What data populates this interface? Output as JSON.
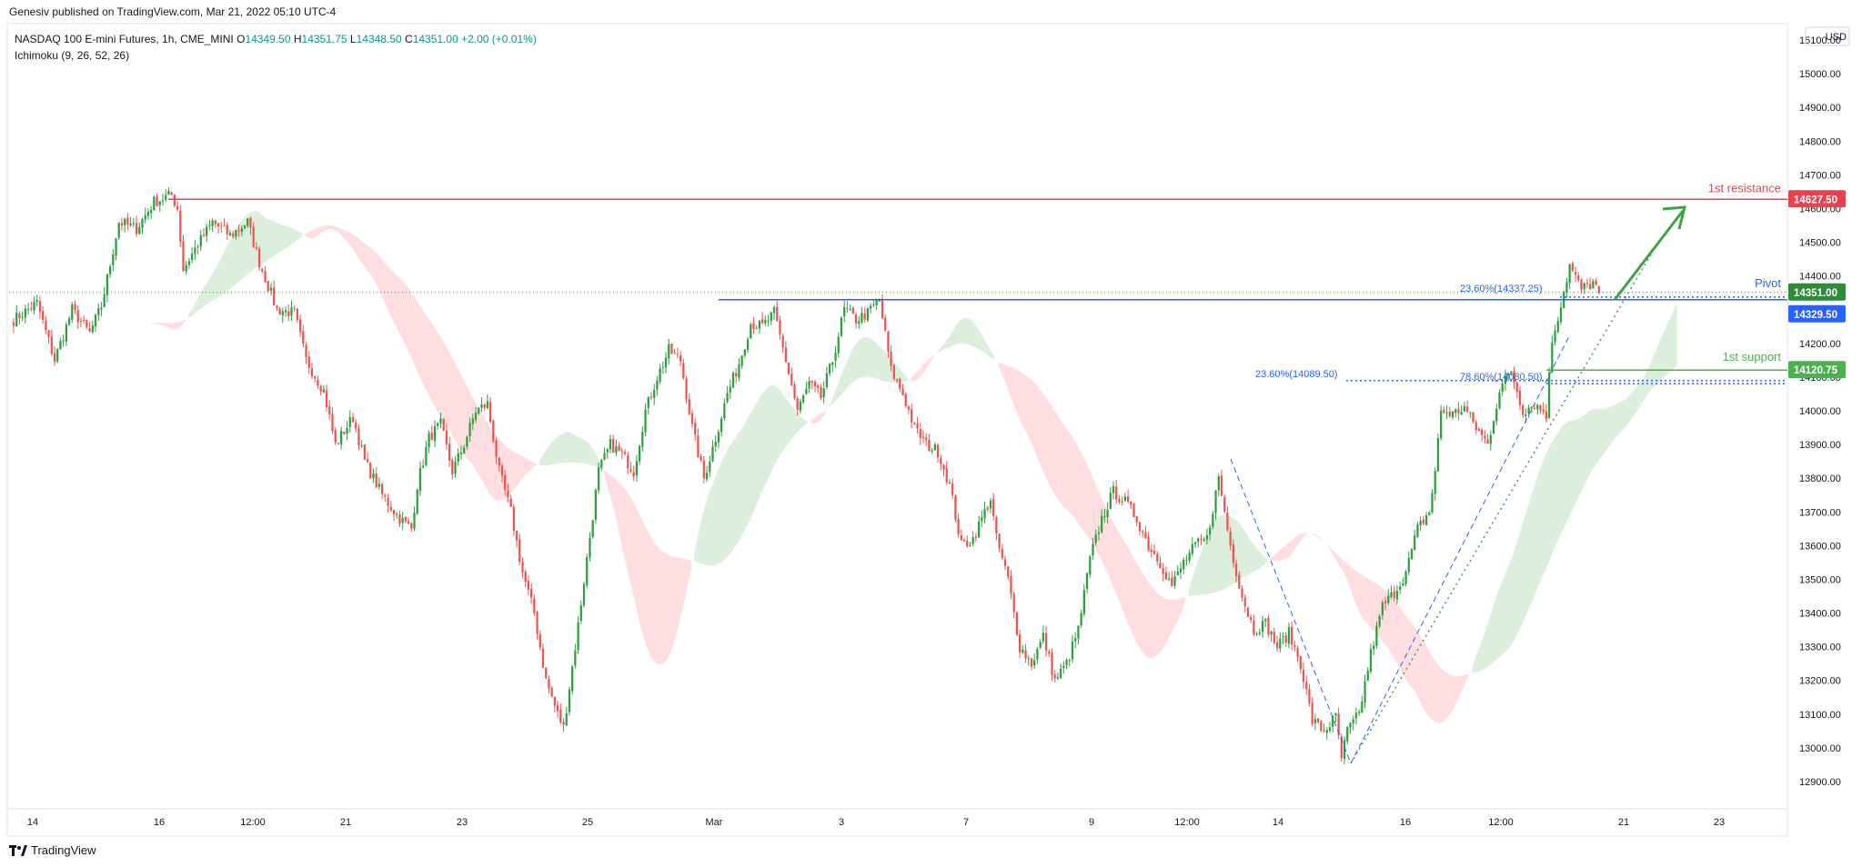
{
  "header": {
    "attribution": "Genesiv published on TradingView.com, Mar 21, 2022 05:10 UTC-4"
  },
  "legend": {
    "symbol": "NASDAQ 100 E-mini Futures, 1h, CME_MINI",
    "o_label": "O",
    "o": "14349.50",
    "h_label": "H",
    "h": "14351.75",
    "l_label": "L",
    "l": "14348.50",
    "c_label": "C",
    "c": "14351.00",
    "change": "+2.00 (+0.01%)",
    "indicator": "Ichimoku (9, 26, 52, 26)"
  },
  "price_axis": {
    "currency": "USD",
    "ticks": [
      "15100.00",
      "15000.00",
      "14900.00",
      "14800.00",
      "14700.00",
      "14600.00",
      "14500.00",
      "14400.00",
      "14300.00",
      "14200.00",
      "14100.00",
      "14000.00",
      "13900.00",
      "13800.00",
      "13700.00",
      "13600.00",
      "13500.00",
      "13400.00",
      "13300.00",
      "13200.00",
      "13100.00",
      "13000.00",
      "12900.00"
    ]
  },
  "time_axis": {
    "ticks": [
      "14",
      "16",
      "12:00",
      "21",
      "23",
      "25",
      "Mar",
      "3",
      "7",
      "9",
      "12:00",
      "14",
      "16",
      "12:00",
      "21",
      "23"
    ]
  },
  "annotations": {
    "resistance_label": "1st resistance",
    "resistance_price": "14627.50",
    "pivot_label": "Pivot",
    "pivot_price": "14329.50",
    "last_price": "14351.00",
    "support_label": "1st support",
    "support_price": "14120.75",
    "fib_pivot": "23.60%(14337.25)",
    "fib_support_a": "23.60%(14089.50)",
    "fib_support_b": "78.60%(14080.50)"
  },
  "colors": {
    "up": "#26a69a",
    "up_candle": "#2e9f3f",
    "down": "#ef5350",
    "resistance": "#e8414f",
    "pivot": "#2962ff",
    "support": "#4caf50",
    "last_price": "#2e8b3a",
    "cloud_bull": "#c8e6c9",
    "cloud_bear": "#ffcdd2",
    "fib": "#2962ff",
    "trend": "#43a047"
  },
  "footer": {
    "logo_text": "TradingView"
  },
  "chart_data": {
    "type": "candlestick",
    "instrument": "NASDAQ 100 E-mini Futures",
    "timeframe": "1h",
    "currency": "USD",
    "ylim": [
      12830,
      15130
    ],
    "x_ticks": [
      "14",
      "16",
      "12:00",
      "21",
      "23",
      "25",
      "Mar",
      "3",
      "7",
      "9",
      "12:00",
      "14",
      "16",
      "12:00",
      "21",
      "23"
    ],
    "path_points": [
      [
        0,
        14270
      ],
      [
        8,
        14320
      ],
      [
        14,
        14150
      ],
      [
        20,
        14300
      ],
      [
        26,
        14230
      ],
      [
        30,
        14310
      ],
      [
        36,
        14560
      ],
      [
        42,
        14540
      ],
      [
        48,
        14620
      ],
      [
        54,
        14640
      ],
      [
        56,
        14600
      ],
      [
        58,
        14420
      ],
      [
        62,
        14480
      ],
      [
        68,
        14560
      ],
      [
        74,
        14520
      ],
      [
        80,
        14560
      ],
      [
        84,
        14440
      ],
      [
        90,
        14300
      ],
      [
        96,
        14290
      ],
      [
        100,
        14150
      ],
      [
        106,
        14060
      ],
      [
        110,
        13900
      ],
      [
        116,
        13980
      ],
      [
        120,
        13850
      ],
      [
        126,
        13750
      ],
      [
        132,
        13680
      ],
      [
        136,
        13650
      ],
      [
        138,
        13780
      ],
      [
        142,
        13920
      ],
      [
        146,
        13960
      ],
      [
        150,
        13820
      ],
      [
        154,
        13900
      ],
      [
        158,
        14000
      ],
      [
        162,
        14020
      ],
      [
        166,
        13820
      ],
      [
        170,
        13700
      ],
      [
        174,
        13520
      ],
      [
        178,
        13400
      ],
      [
        182,
        13200
      ],
      [
        186,
        13100
      ],
      [
        188,
        13060
      ],
      [
        192,
        13300
      ],
      [
        196,
        13560
      ],
      [
        200,
        13820
      ],
      [
        204,
        13900
      ],
      [
        208,
        13870
      ],
      [
        212,
        13820
      ],
      [
        216,
        14000
      ],
      [
        220,
        14100
      ],
      [
        224,
        14180
      ],
      [
        228,
        14150
      ],
      [
        232,
        13950
      ],
      [
        236,
        13800
      ],
      [
        240,
        13920
      ],
      [
        244,
        14050
      ],
      [
        248,
        14140
      ],
      [
        252,
        14260
      ],
      [
        256,
        14250
      ],
      [
        260,
        14290
      ],
      [
        264,
        14150
      ],
      [
        268,
        14000
      ],
      [
        272,
        14080
      ],
      [
        276,
        14040
      ],
      [
        280,
        14150
      ],
      [
        284,
        14300
      ],
      [
        288,
        14270
      ],
      [
        292,
        14290
      ],
      [
        296,
        14330
      ],
      [
        300,
        14120
      ],
      [
        304,
        14050
      ],
      [
        308,
        13950
      ],
      [
        312,
        13900
      ],
      [
        316,
        13880
      ],
      [
        320,
        13780
      ],
      [
        324,
        13600
      ],
      [
        328,
        13620
      ],
      [
        332,
        13700
      ],
      [
        334,
        13740
      ],
      [
        336,
        13620
      ],
      [
        340,
        13500
      ],
      [
        344,
        13300
      ],
      [
        348,
        13250
      ],
      [
        352,
        13330
      ],
      [
        356,
        13200
      ],
      [
        360,
        13250
      ],
      [
        364,
        13350
      ],
      [
        368,
        13560
      ],
      [
        372,
        13680
      ],
      [
        376,
        13760
      ],
      [
        380,
        13730
      ],
      [
        384,
        13680
      ],
      [
        388,
        13600
      ],
      [
        392,
        13550
      ],
      [
        396,
        13480
      ],
      [
        400,
        13550
      ],
      [
        404,
        13600
      ],
      [
        408,
        13620
      ],
      [
        412,
        13800
      ],
      [
        416,
        13600
      ],
      [
        420,
        13450
      ],
      [
        424,
        13350
      ],
      [
        428,
        13370
      ],
      [
        432,
        13300
      ],
      [
        436,
        13340
      ],
      [
        440,
        13250
      ],
      [
        444,
        13080
      ],
      [
        448,
        13050
      ],
      [
        452,
        13090
      ],
      [
        454,
        12970
      ],
      [
        456,
        13050
      ],
      [
        460,
        13100
      ],
      [
        464,
        13280
      ],
      [
        468,
        13420
      ],
      [
        472,
        13460
      ],
      [
        476,
        13520
      ],
      [
        480,
        13650
      ],
      [
        484,
        13700
      ],
      [
        486,
        13820
      ],
      [
        488,
        14000
      ],
      [
        492,
        13990
      ],
      [
        496,
        14010
      ],
      [
        500,
        13950
      ],
      [
        504,
        13900
      ],
      [
        508,
        14060
      ],
      [
        512,
        14120
      ],
      [
        516,
        14000
      ],
      [
        520,
        14020
      ],
      [
        524,
        13990
      ],
      [
        526,
        14210
      ],
      [
        528,
        14280
      ],
      [
        532,
        14430
      ],
      [
        536,
        14360
      ],
      [
        540,
        14380
      ],
      [
        542,
        14351
      ]
    ],
    "n_bars": 543,
    "levels": [
      {
        "name": "1st resistance",
        "price": 14627.5
      },
      {
        "name": "Pivot",
        "price": 14329.5
      },
      {
        "name": "1st support",
        "price": 14120.75
      }
    ],
    "fib_levels": [
      {
        "label": "23.60%(14337.25)",
        "price": 14337.25
      },
      {
        "label": "23.60%(14089.50)",
        "price": 14089.5
      },
      {
        "label": "78.60%(14080.50)",
        "price": 14080.5
      }
    ],
    "last_price": 14351.0
  }
}
